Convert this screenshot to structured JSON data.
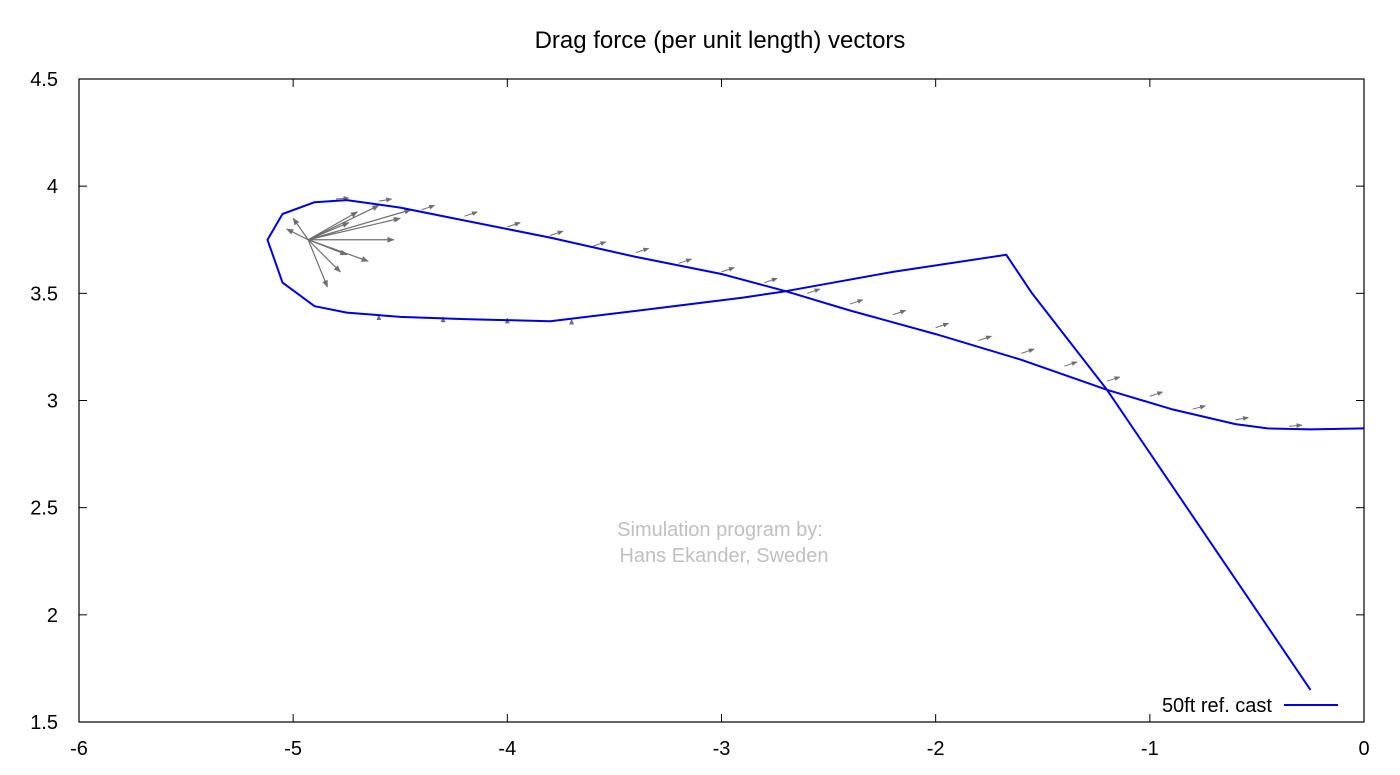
{
  "chart_data": {
    "type": "line",
    "title": "Drag force (per unit length) vectors",
    "xlabel": "",
    "ylabel": "",
    "xlim": [
      -6,
      0
    ],
    "ylim": [
      1.5,
      4.5
    ],
    "xticks": [
      "-6",
      "-5",
      "-4",
      "-3",
      "-2",
      "-1",
      "0"
    ],
    "yticks": [
      "4.5",
      "4",
      "3.5",
      "3",
      "2.5",
      "2",
      "1.5"
    ],
    "grid": false,
    "legend_position": "bottom-right",
    "annotation": [
      "Simulation program by:",
      "Hans Ekander, Sweden"
    ],
    "colors": {
      "line": "#0000dd",
      "vectors": "#6e6e6e"
    },
    "series": [
      {
        "name": "50ft ref. cast",
        "points": [
          [
            -0.25,
            1.65
          ],
          [
            -1.2,
            3.05
          ],
          [
            -1.55,
            3.5
          ],
          [
            -1.67,
            3.68
          ],
          [
            -2.2,
            3.6
          ],
          [
            -2.7,
            3.51
          ],
          [
            -2.9,
            3.48
          ],
          [
            -3.3,
            3.43
          ],
          [
            -3.8,
            3.37
          ],
          [
            -4.2,
            3.38
          ],
          [
            -4.5,
            3.39
          ],
          [
            -4.75,
            3.41
          ],
          [
            -4.9,
            3.44
          ],
          [
            -5.05,
            3.55
          ],
          [
            -5.12,
            3.75
          ],
          [
            -5.05,
            3.87
          ],
          [
            -4.9,
            3.925
          ],
          [
            -4.75,
            3.935
          ],
          [
            -4.5,
            3.9
          ],
          [
            -4.2,
            3.84
          ],
          [
            -3.8,
            3.76
          ],
          [
            -3.4,
            3.67
          ],
          [
            -3.0,
            3.59
          ],
          [
            -2.7,
            3.51
          ],
          [
            -2.4,
            3.42
          ],
          [
            -2.0,
            3.31
          ],
          [
            -1.6,
            3.19
          ],
          [
            -1.2,
            3.05
          ],
          [
            -0.9,
            2.96
          ],
          [
            -0.6,
            2.89
          ],
          [
            -0.45,
            2.87
          ],
          [
            -0.25,
            2.865
          ],
          [
            0.0,
            2.87
          ]
        ]
      }
    ],
    "vectors": {
      "note_hidden": false,
      "fan_origin": [
        -4.93,
        3.75
      ],
      "fan_tips": [
        [
          -4.45,
          3.89
        ],
        [
          -4.5,
          3.85
        ],
        [
          -4.53,
          3.75
        ],
        [
          -4.65,
          3.65
        ],
        [
          -4.75,
          3.68
        ],
        [
          -4.78,
          3.6
        ],
        [
          -4.84,
          3.53
        ],
        [
          -4.74,
          3.83
        ],
        [
          -5.0,
          3.85
        ],
        [
          -5.03,
          3.8
        ],
        [
          -4.6,
          3.91
        ],
        [
          -4.7,
          3.88
        ]
      ],
      "tangent_arrows": [
        {
          "x": -4.8,
          "y": 3.94,
          "dx": 0.06,
          "dy": 0.005
        },
        {
          "x": -4.6,
          "y": 3.93,
          "dx": 0.06,
          "dy": 0.01
        },
        {
          "x": -4.4,
          "y": 3.89,
          "dx": 0.06,
          "dy": 0.02
        },
        {
          "x": -4.2,
          "y": 3.86,
          "dx": 0.06,
          "dy": 0.02
        },
        {
          "x": -4.0,
          "y": 3.81,
          "dx": 0.06,
          "dy": 0.02
        },
        {
          "x": -3.8,
          "y": 3.77,
          "dx": 0.06,
          "dy": 0.02
        },
        {
          "x": -3.6,
          "y": 3.72,
          "dx": 0.06,
          "dy": 0.02
        },
        {
          "x": -3.4,
          "y": 3.69,
          "dx": 0.06,
          "dy": 0.02
        },
        {
          "x": -3.2,
          "y": 3.64,
          "dx": 0.06,
          "dy": 0.02
        },
        {
          "x": -3.0,
          "y": 3.6,
          "dx": 0.06,
          "dy": 0.02
        },
        {
          "x": -2.8,
          "y": 3.55,
          "dx": 0.06,
          "dy": 0.02
        },
        {
          "x": -2.6,
          "y": 3.5,
          "dx": 0.06,
          "dy": 0.02
        },
        {
          "x": -2.4,
          "y": 3.45,
          "dx": 0.06,
          "dy": 0.02
        },
        {
          "x": -2.2,
          "y": 3.4,
          "dx": 0.06,
          "dy": 0.02
        },
        {
          "x": -2.0,
          "y": 3.34,
          "dx": 0.06,
          "dy": 0.02
        },
        {
          "x": -1.8,
          "y": 3.28,
          "dx": 0.06,
          "dy": 0.02
        },
        {
          "x": -1.6,
          "y": 3.22,
          "dx": 0.06,
          "dy": 0.02
        },
        {
          "x": -1.4,
          "y": 3.16,
          "dx": 0.06,
          "dy": 0.02
        },
        {
          "x": -1.2,
          "y": 3.09,
          "dx": 0.06,
          "dy": 0.02
        },
        {
          "x": -1.0,
          "y": 3.02,
          "dx": 0.06,
          "dy": 0.02
        },
        {
          "x": -0.8,
          "y": 2.96,
          "dx": 0.06,
          "dy": 0.015
        },
        {
          "x": -0.6,
          "y": 2.91,
          "dx": 0.06,
          "dy": 0.01
        },
        {
          "x": -0.35,
          "y": 2.88,
          "dx": 0.06,
          "dy": 0.005
        },
        {
          "x": -4.6,
          "y": 3.39,
          "dx": 0.0,
          "dy": 0.01
        },
        {
          "x": -4.3,
          "y": 3.38,
          "dx": 0.0,
          "dy": 0.01
        },
        {
          "x": -4.0,
          "y": 3.375,
          "dx": 0.0,
          "dy": 0.01
        },
        {
          "x": -3.7,
          "y": 3.37,
          "dx": 0.0,
          "dy": 0.01
        }
      ]
    }
  }
}
